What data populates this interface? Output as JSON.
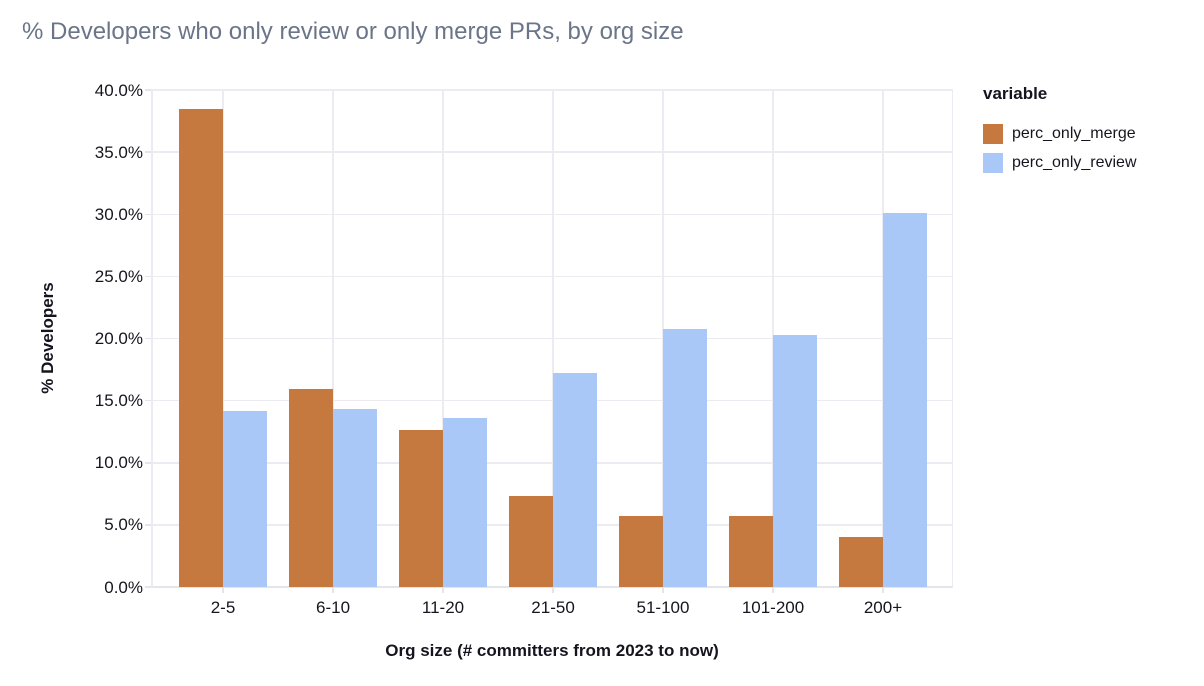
{
  "title": "% Developers who only review or only merge PRs, by org size",
  "colors": {
    "merge": "#C5793F",
    "review": "#A9C7F7",
    "grid": "#EBEBF1",
    "axis_text": "#15151F",
    "title_text": "#6B7589"
  },
  "legend": {
    "title": "variable",
    "items": [
      {
        "label": "perc_only_merge",
        "color_key": "merge"
      },
      {
        "label": "perc_only_review",
        "color_key": "review"
      }
    ]
  },
  "y_axis": {
    "title": "% Developers",
    "tick_labels": [
      "0.0%",
      "5.0%",
      "10.0%",
      "15.0%",
      "20.0%",
      "25.0%",
      "30.0%",
      "35.0%",
      "40.0%"
    ]
  },
  "x_axis": {
    "title": "Org size (# committers from 2023 to now)"
  },
  "chart_data": {
    "type": "bar",
    "title": "% Developers who only review or only merge PRs, by org size",
    "xlabel": "Org size (# committers from 2023 to now)",
    "ylabel": "% Developers",
    "categories": [
      "2-5",
      "6-10",
      "11-20",
      "21-50",
      "51-100",
      "101-200",
      "200+"
    ],
    "series": [
      {
        "name": "perc_only_merge",
        "color": "#C5793F",
        "values": [
          38.5,
          15.9,
          12.6,
          7.3,
          5.7,
          5.7,
          4.0
        ]
      },
      {
        "name": "perc_only_review",
        "color": "#A9C7F7",
        "values": [
          14.2,
          14.3,
          13.6,
          17.2,
          20.8,
          20.3,
          30.1
        ]
      }
    ],
    "ylim": [
      0,
      40
    ],
    "ytick_step": 5,
    "ytick_format": "percent_one_decimal",
    "grid": true,
    "legend_title": "variable",
    "legend_position": "right"
  }
}
